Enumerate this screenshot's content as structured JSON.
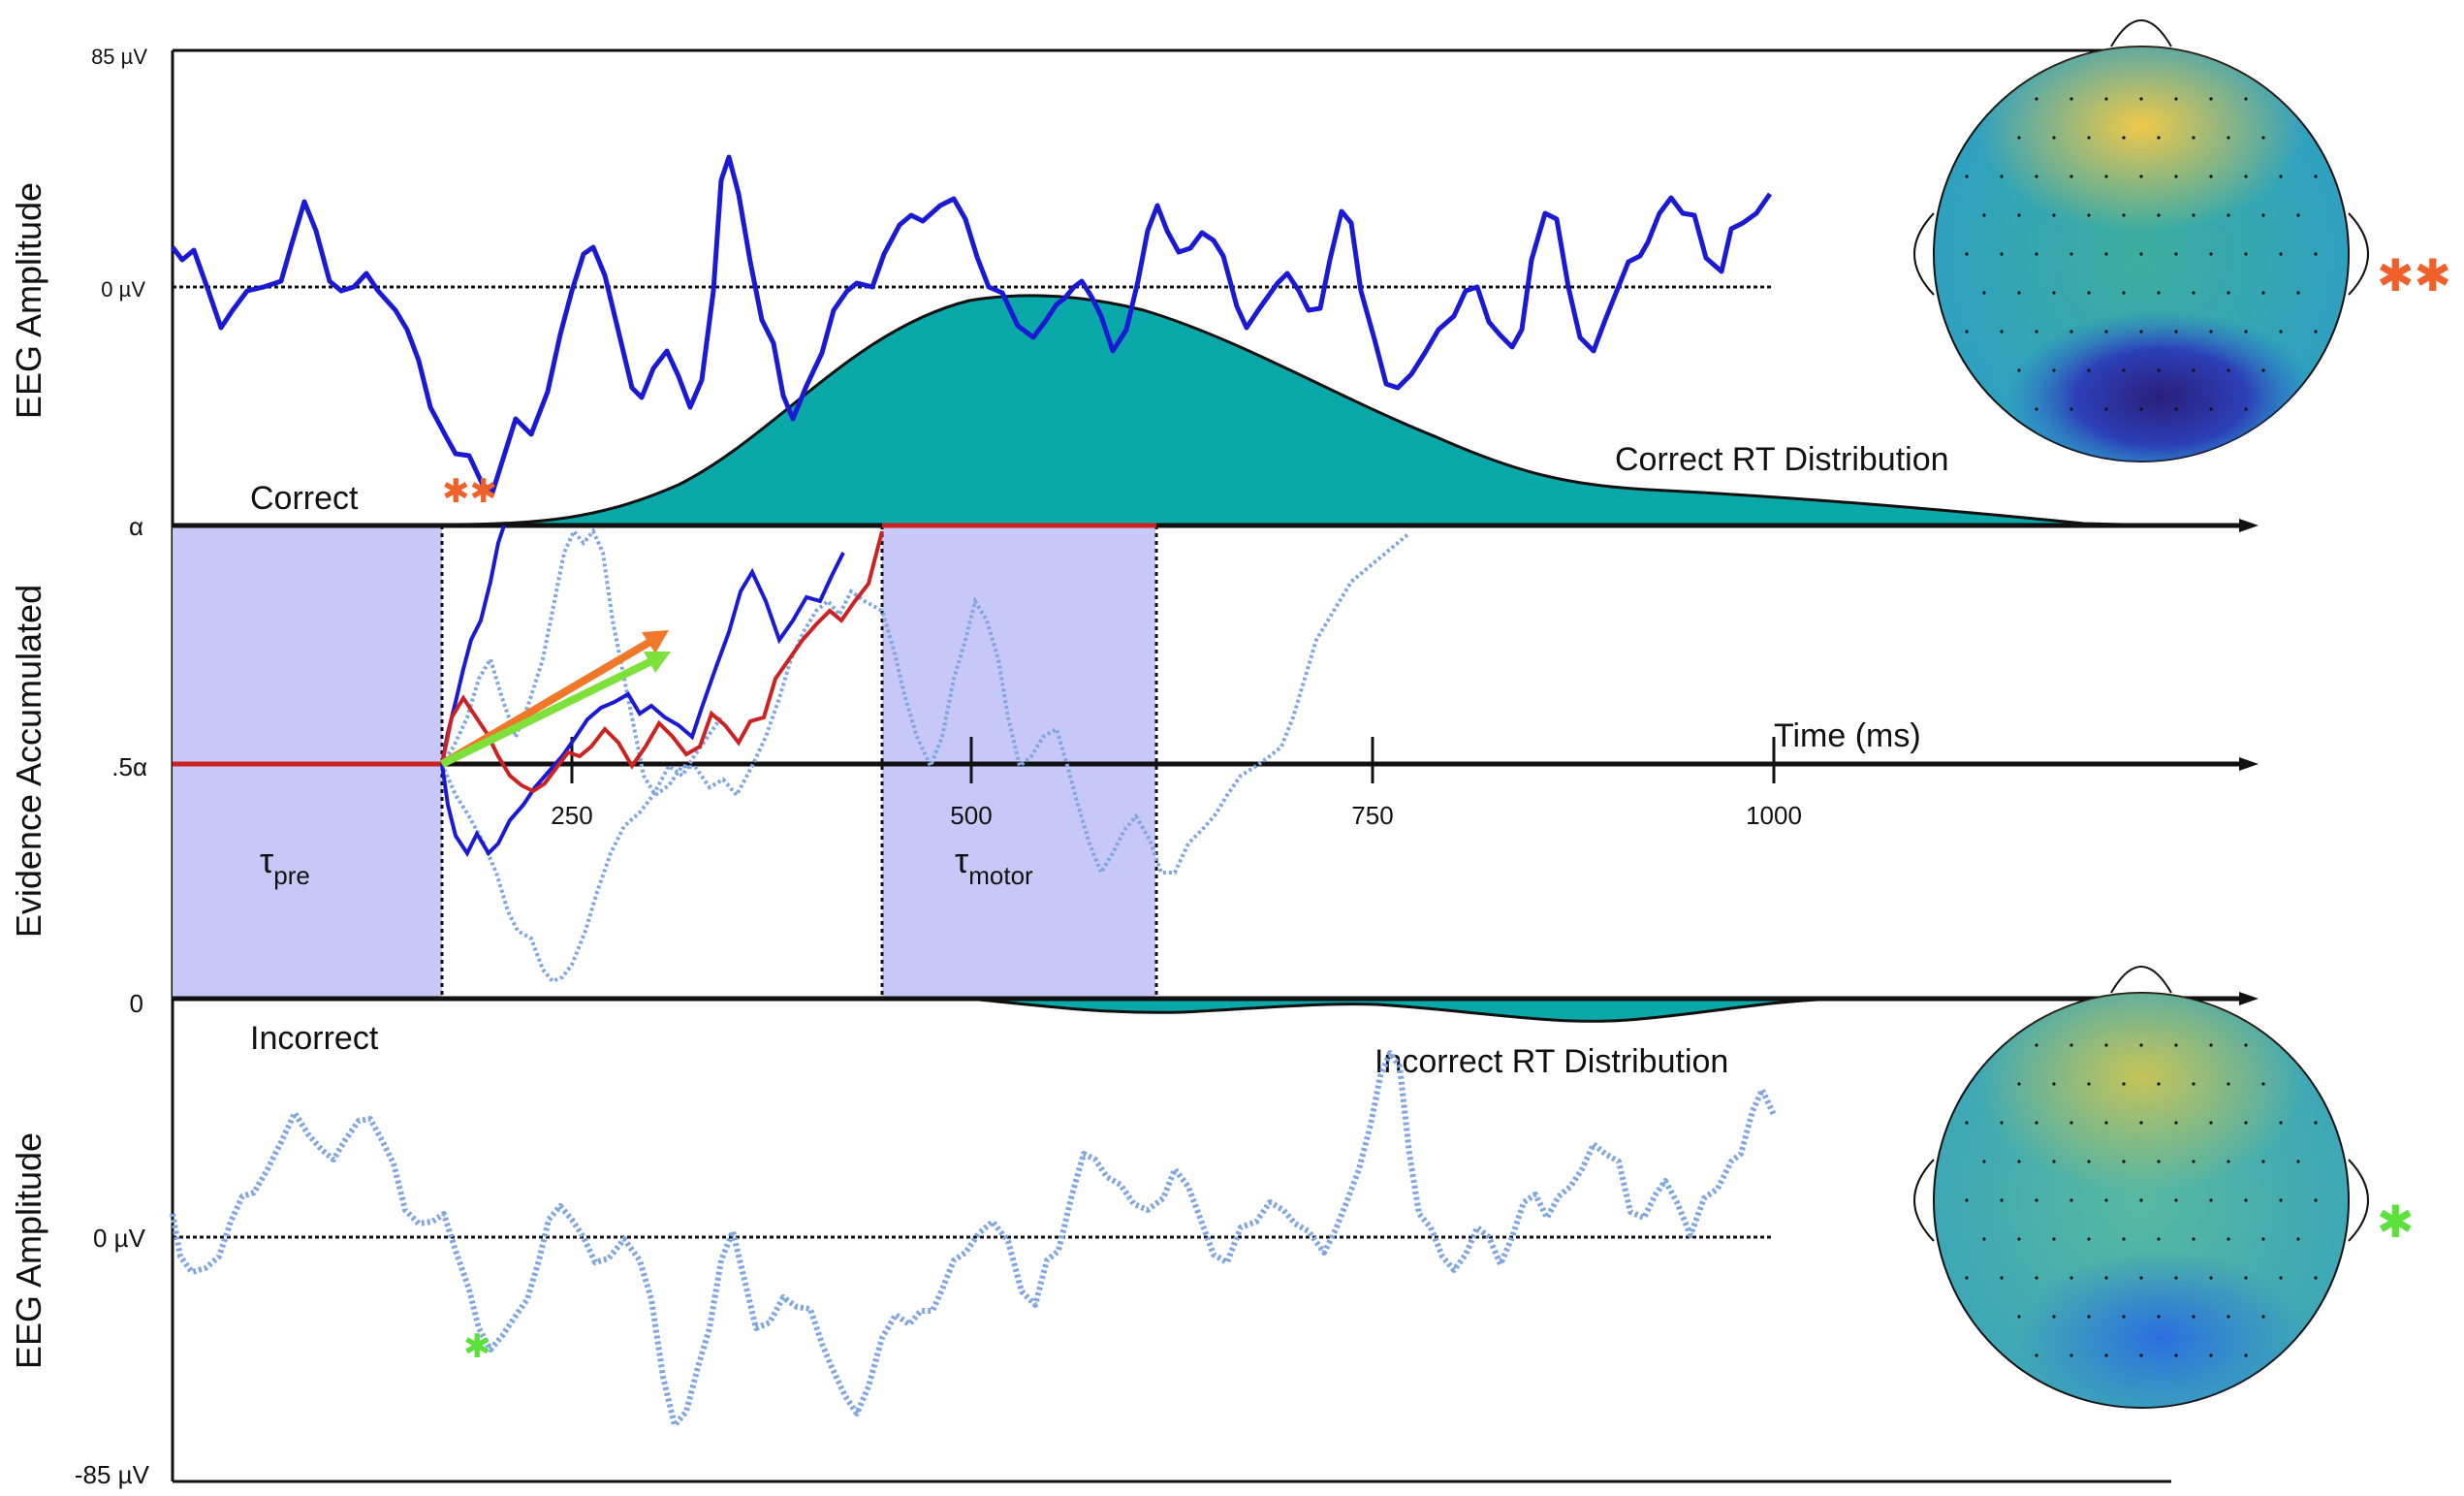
{
  "labels": {
    "eeg_amplitude_top": "EEG Amplitude",
    "evidence_accumulated": "Evidence Accumulated",
    "eeg_amplitude_bottom": "EEG Amplitude",
    "plus_85": "85 µV",
    "zero_uv_top": "0 µV",
    "alpha": "α",
    "half_alpha": ".5α",
    "zero": "0",
    "zero_uv_bottom": "0 µV",
    "minus_85": "-85 µV",
    "correct": "Correct",
    "incorrect": "Incorrect",
    "correct_rt": "Correct RT Distribution",
    "incorrect_rt": "Incorrect RT Distribution",
    "time_axis": "Time (ms)",
    "tau_pre": "τ",
    "tau_pre_sub": "pre",
    "tau_motor": "τ",
    "tau_motor_sub": "motor",
    "ticks": [
      "250",
      "500",
      "750",
      "1000"
    ]
  },
  "markers": {
    "correct_star_count": 2,
    "incorrect_star_count": 1,
    "correct_star_glyph": "✱✱",
    "incorrect_star_glyph": "✱"
  },
  "colors": {
    "eeg_correct": "#1a1ad6",
    "eeg_incorrect": "#7fa6e0",
    "rt_fill": "#0aa8a8",
    "tau_box": "#c8c8f8",
    "boundary_red": "#cc2222",
    "correct_star": "#f0602a",
    "incorrect_star": "#5ce03a",
    "arrow_orange": "#f07828",
    "arrow_green": "#7ee03a"
  }
}
